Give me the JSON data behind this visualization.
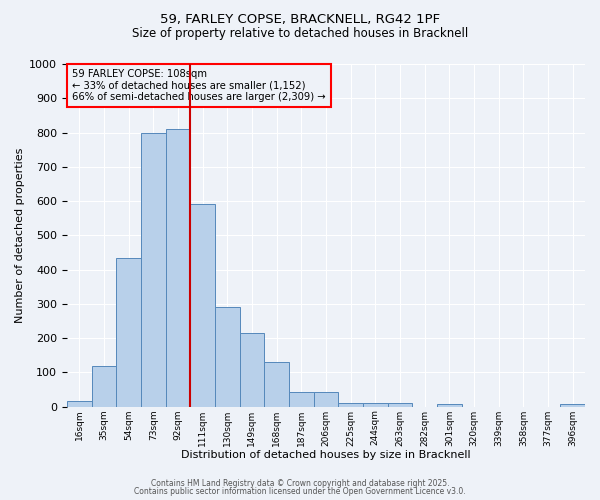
{
  "title_line1": "59, FARLEY COPSE, BRACKNELL, RG42 1PF",
  "title_line2": "Size of property relative to detached houses in Bracknell",
  "xlabel": "Distribution of detached houses by size in Bracknell",
  "ylabel": "Number of detached properties",
  "bin_labels": [
    "16sqm",
    "35sqm",
    "54sqm",
    "73sqm",
    "92sqm",
    "111sqm",
    "130sqm",
    "149sqm",
    "168sqm",
    "187sqm",
    "206sqm",
    "225sqm",
    "244sqm",
    "263sqm",
    "282sqm",
    "301sqm",
    "320sqm",
    "339sqm",
    "358sqm",
    "377sqm",
    "396sqm"
  ],
  "bar_heights": [
    18,
    120,
    435,
    800,
    810,
    590,
    290,
    215,
    130,
    42,
    42,
    12,
    12,
    10,
    0,
    8,
    0,
    0,
    0,
    0,
    8
  ],
  "bar_color": "#b8d0ea",
  "bar_edge_color": "#5588bb",
  "vline_x_index": 5,
  "vline_color": "#cc0000",
  "annotation_text_line1": "59 FARLEY COPSE: 108sqm",
  "annotation_text_line2": "← 33% of detached houses are smaller (1,152)",
  "annotation_text_line3": "66% of semi-detached houses are larger (2,309) →",
  "ylim": [
    0,
    1000
  ],
  "yticks": [
    0,
    100,
    200,
    300,
    400,
    500,
    600,
    700,
    800,
    900,
    1000
  ],
  "background_color": "#eef2f8",
  "grid_color": "#ffffff",
  "footer_line1": "Contains HM Land Registry data © Crown copyright and database right 2025.",
  "footer_line2": "Contains public sector information licensed under the Open Government Licence v3.0."
}
